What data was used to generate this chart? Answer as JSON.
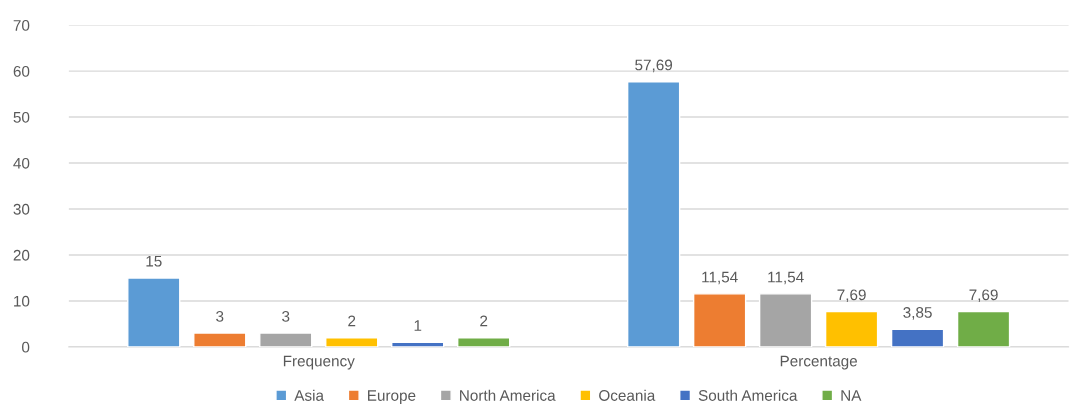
{
  "chart_data": {
    "type": "bar",
    "categories": [
      "Frequency",
      "Percentage"
    ],
    "series": [
      {
        "name": "Asia",
        "color": "#5b9bd5",
        "values": [
          15,
          57.69
        ],
        "value_labels": [
          "15",
          "57,69"
        ]
      },
      {
        "name": "Europe",
        "color": "#ed7d31",
        "values": [
          3,
          11.54
        ],
        "value_labels": [
          "3",
          "11,54"
        ]
      },
      {
        "name": "North America",
        "color": "#a5a5a5",
        "values": [
          3,
          11.54
        ],
        "value_labels": [
          "3",
          "11,54"
        ]
      },
      {
        "name": "Oceania",
        "color": "#ffc000",
        "values": [
          2,
          7.69
        ],
        "value_labels": [
          "2",
          "7,69"
        ]
      },
      {
        "name": "South America",
        "color": "#4472c4",
        "values": [
          1,
          3.85
        ],
        "value_labels": [
          "1",
          "3,85"
        ]
      },
      {
        "name": "NA",
        "color": "#70ad47",
        "values": [
          2,
          7.69
        ],
        "value_labels": [
          "2",
          "7,69"
        ]
      }
    ],
    "ylim": [
      0,
      70
    ],
    "yticks": [
      0,
      10,
      20,
      30,
      40,
      50,
      60,
      70
    ],
    "grid": "y",
    "legend": "bottom"
  }
}
